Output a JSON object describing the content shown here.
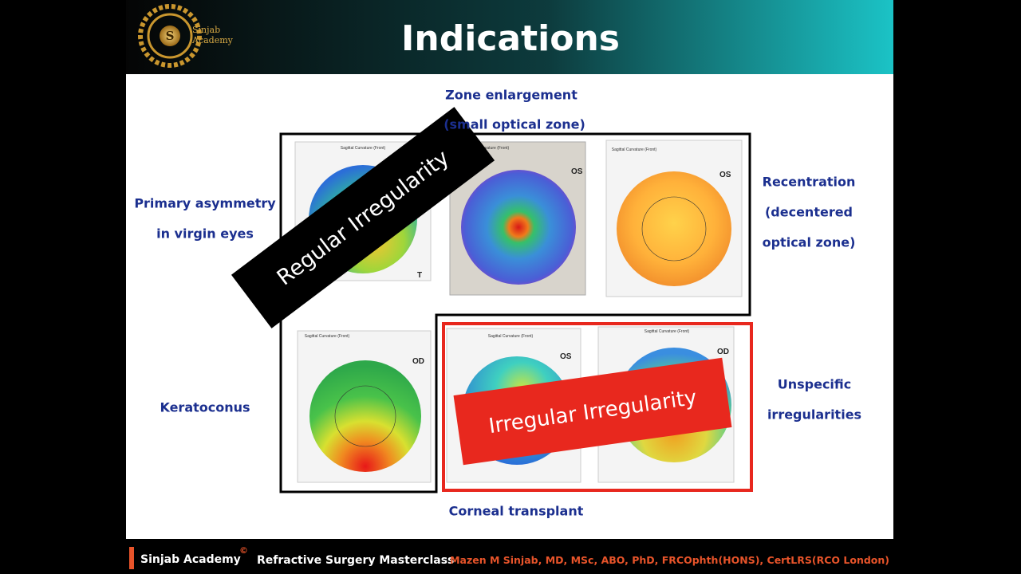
{
  "header": {
    "logo_letter": "S",
    "logo_line1": "Sinjab",
    "logo_line2": "Academy",
    "title": "Indications"
  },
  "labels": {
    "zone_1": "Zone enlargement",
    "zone_2": "(small optical zone)",
    "primary_1": "Primary asymmetry",
    "primary_2": "in virgin eyes",
    "recentration_1": "Recentration",
    "recentration_2": "(decentered",
    "recentration_3": "optical zone)",
    "keratoconus": "Keratoconus",
    "unspecific_1": "Unspecific",
    "unspecific_2": "irregularities",
    "transplant": "Corneal transplant"
  },
  "banners": {
    "regular": "Regular Irregularity",
    "irregular": "Irregular Irregularity"
  },
  "maps": [
    {
      "header": "Sagittal Curvature (Front)",
      "eye": "T"
    },
    {
      "header": "Sagittal Curvature (Front)",
      "eye": "OS"
    },
    {
      "header": "Sagittal Curvature (Front)",
      "eye": "OS"
    },
    {
      "header": "Sagittal Curvature (Front)",
      "eye": "OD"
    },
    {
      "header": "Sagittal Curvature (Front)",
      "eye": "OS"
    },
    {
      "header": "Sagittal Curvature (Front)",
      "eye": "OD"
    }
  ],
  "footer": {
    "brand": "Sinjab Academy",
    "copyright": "©",
    "course": "Refractive Surgery Masterclass",
    "author": "Mazen M Sinjab, MD, MSc, ABO, PhD, FRCOphth(HONS), CertLRS(RCO London)"
  }
}
